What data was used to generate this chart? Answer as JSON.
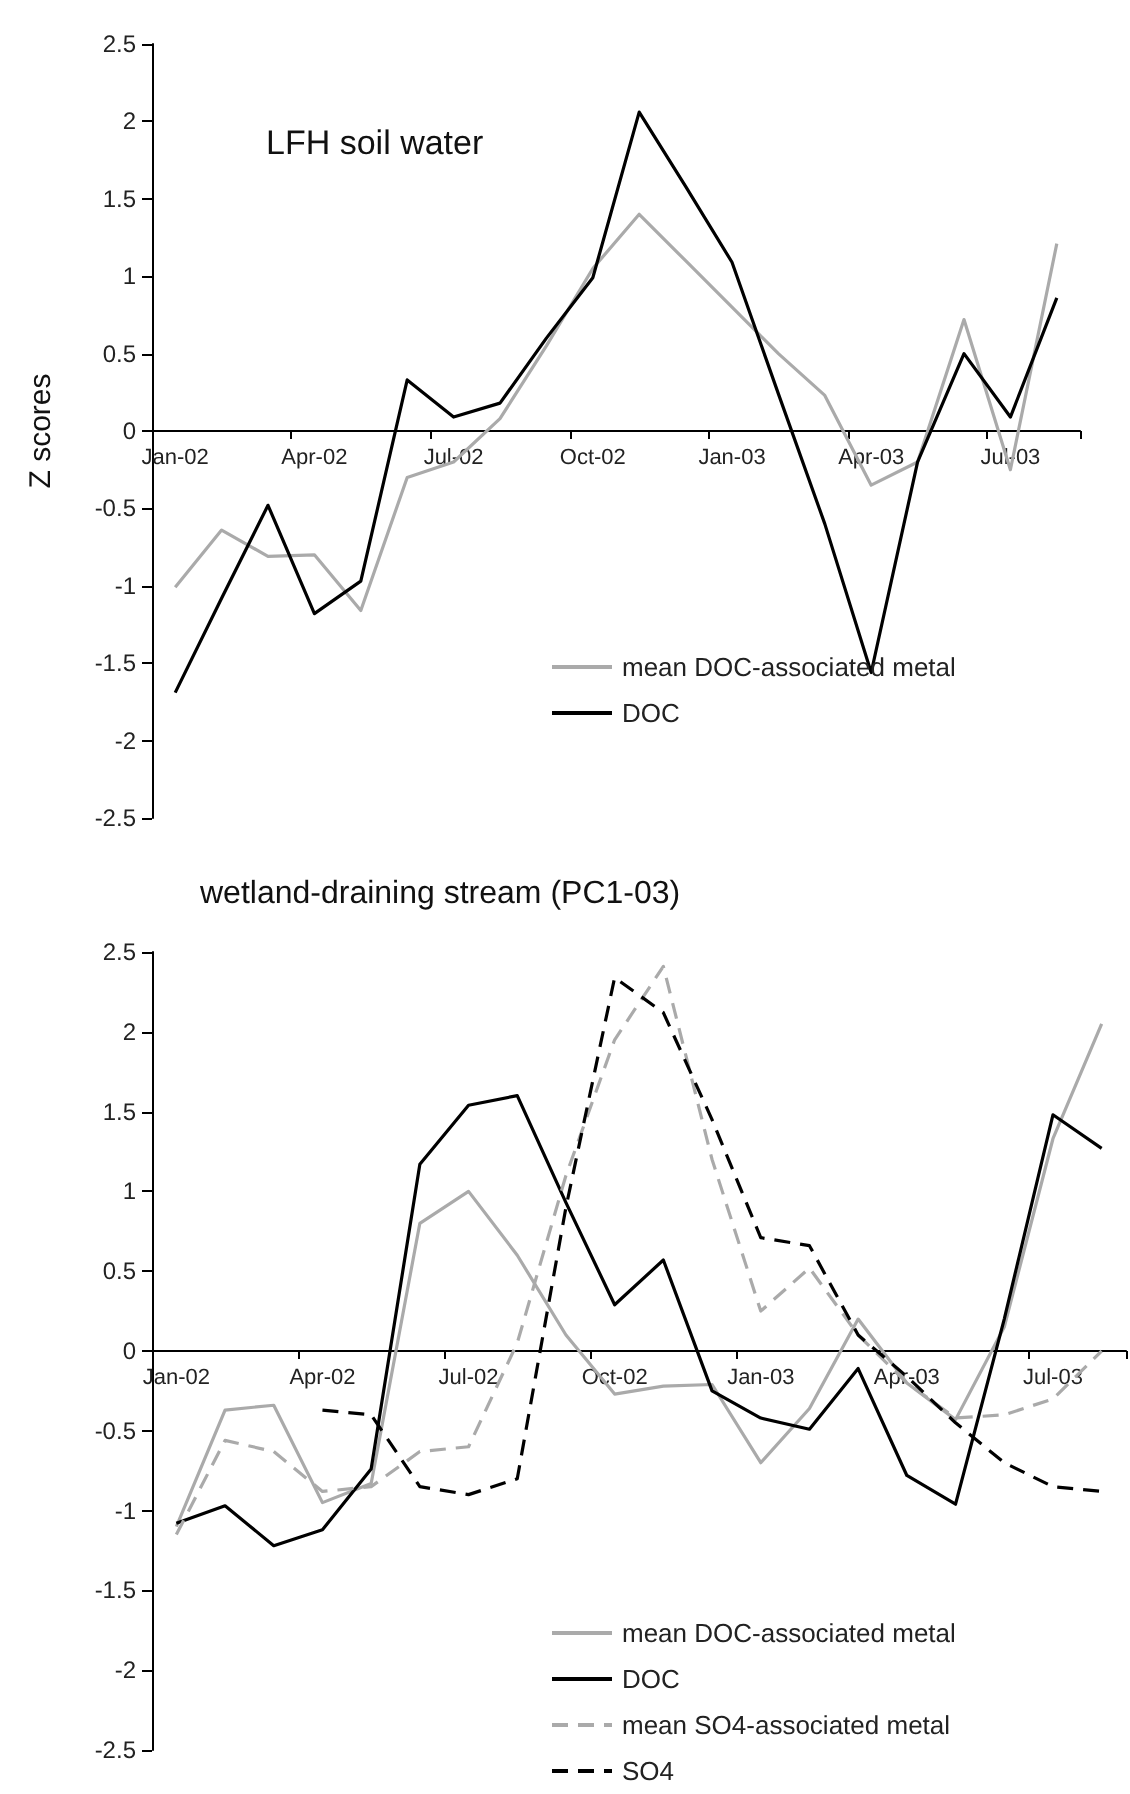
{
  "chart_data": [
    {
      "type": "line",
      "title": "LFH soil water",
      "ylabel": "Z scores",
      "categories": [
        "Jan-02",
        null,
        null,
        "Apr-02",
        null,
        null,
        "Jul-02",
        null,
        null,
        "Oct-02",
        null,
        null,
        "Jan-03",
        null,
        null,
        "Apr-03",
        null,
        null,
        "Jul-03",
        null
      ],
      "series": [
        {
          "name": "mean DOC-associated metal",
          "color": "#aaaaaa",
          "line_style": "solid",
          "values": [
            -1.01,
            -0.64,
            -0.81,
            -0.8,
            -1.16,
            -0.3,
            -0.2,
            0.08,
            0.55,
            1.05,
            1.4,
            1.1,
            0.8,
            0.5,
            0.23,
            -0.35,
            -0.2,
            0.72,
            -0.25,
            1.21
          ]
        },
        {
          "name": "DOC",
          "color": "#000000",
          "line_style": "solid",
          "values": [
            -1.69,
            -1.08,
            -0.48,
            -1.18,
            -0.97,
            0.33,
            0.09,
            0.18,
            0.6,
            0.99,
            2.06,
            1.58,
            1.09,
            0.24,
            -0.6,
            -1.56,
            -0.2,
            0.5,
            0.09,
            0.86
          ]
        }
      ],
      "ylim": [
        -2.5,
        2.5
      ],
      "yticks": [
        -2.5,
        -2,
        -1.5,
        -1,
        -0.5,
        0,
        0.5,
        1,
        1.5,
        2,
        2.5
      ],
      "legend": "bottom right",
      "marker": "none"
    },
    {
      "type": "line",
      "title": "wetland-draining stream (PC1-03)",
      "categories": [
        "Jan-02",
        null,
        null,
        "Apr-02",
        null,
        null,
        "Jul-02",
        null,
        null,
        "Oct-02",
        null,
        null,
        "Jan-03",
        null,
        null,
        "Apr-03",
        null,
        null,
        "Jul-03",
        null
      ],
      "series": [
        {
          "name": "mean DOC-associated metal",
          "color": "#aaaaaa",
          "line_style": "solid",
          "values": [
            -1.1,
            -0.37,
            -0.34,
            -0.95,
            -0.83,
            0.8,
            1.0,
            0.6,
            0.1,
            -0.27,
            -0.22,
            -0.21,
            -0.7,
            -0.36,
            0.2,
            -0.2,
            -0.43,
            0.15,
            1.33,
            2.05
          ]
        },
        {
          "name": "DOC",
          "color": "#000000",
          "line_style": "solid",
          "values": [
            -1.08,
            -0.97,
            -1.22,
            -1.12,
            -0.74,
            1.17,
            1.54,
            1.6,
            0.93,
            0.29,
            0.57,
            -0.25,
            -0.42,
            -0.49,
            -0.11,
            -0.78,
            -0.96,
            0.2,
            1.48,
            1.27
          ]
        },
        {
          "name": "mean SO4-associated metal",
          "color": "#aaaaaa",
          "line_style": "dashed",
          "values": [
            -1.15,
            -0.56,
            -0.63,
            -0.88,
            -0.85,
            -0.63,
            -0.6,
            0.05,
            1.1,
            1.95,
            2.41,
            1.2,
            0.25,
            0.52,
            0.1,
            -0.2,
            -0.42,
            -0.4,
            -0.3,
            0
          ]
        },
        {
          "name": "SO4",
          "color": "#000000",
          "line_style": "dashed",
          "values": [
            null,
            null,
            null,
            -0.37,
            -0.4,
            -0.85,
            -0.9,
            -0.8,
            0.9,
            2.34,
            2.12,
            1.45,
            0.71,
            0.66,
            0.1,
            -0.16,
            -0.45,
            -0.7,
            -0.85,
            -0.88
          ]
        }
      ],
      "ylim": [
        -2.5,
        2.5
      ],
      "yticks": [
        -2.5,
        -2,
        -1.5,
        -1,
        -0.5,
        0,
        0.5,
        1,
        1.5,
        2,
        2.5
      ],
      "legend": "bottom right",
      "marker": "none"
    }
  ]
}
